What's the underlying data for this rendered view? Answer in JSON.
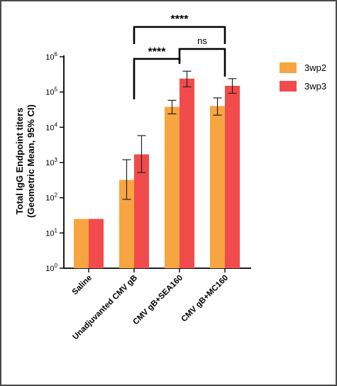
{
  "chart_data": {
    "type": "bar",
    "ylabel_line1": "Total IgG Endpoint titers",
    "ylabel_line2": "(Geometric Mean, 95% CI)",
    "yscale": "log",
    "ylim": [
      1,
      1000000
    ],
    "yticks": [
      {
        "base": "10",
        "exp": "0",
        "value": 1
      },
      {
        "base": "10",
        "exp": "1",
        "value": 10
      },
      {
        "base": "10",
        "exp": "2",
        "value": 100
      },
      {
        "base": "10",
        "exp": "3",
        "value": 1000
      },
      {
        "base": "10",
        "exp": "4",
        "value": 10000
      },
      {
        "base": "10",
        "exp": "5",
        "value": 100000
      },
      {
        "base": "10",
        "exp": "6",
        "value": 1000000
      }
    ],
    "categories": [
      "Saline",
      "Unadjuvanted CMV gB",
      "CMV gB+SEA160",
      "CMV gB+MC160"
    ],
    "series": [
      {
        "name": "3wp2",
        "color": "#F7A541",
        "values": [
          25,
          320,
          38000,
          40000
        ],
        "ci_low": [
          null,
          90,
          24000,
          22000
        ],
        "ci_high": [
          null,
          1200,
          58000,
          68000
        ]
      },
      {
        "name": "3wp3",
        "color": "#F24B4B",
        "values": [
          25,
          1700,
          240000,
          150000
        ],
        "ci_low": [
          null,
          520,
          140000,
          92000
        ],
        "ci_high": [
          null,
          5800,
          390000,
          240000
        ]
      }
    ],
    "legend_position": "right",
    "grid": false,
    "significance": [
      {
        "label": "****",
        "from_category": 1,
        "to_category": 3
      },
      {
        "label": "****",
        "from_category": 1,
        "to_category": 2
      },
      {
        "label": "ns",
        "from_category": 2,
        "to_category": 3
      }
    ]
  }
}
